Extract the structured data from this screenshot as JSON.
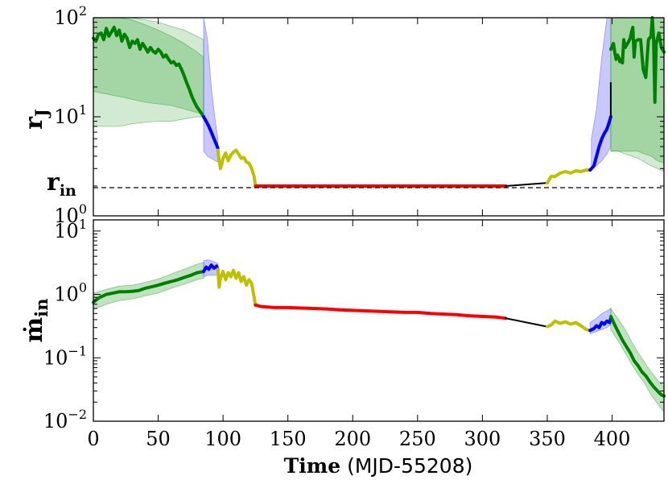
{
  "chart_data": [
    {
      "type": "line",
      "panel": "top",
      "ylabel": "r",
      "ylabel_sub": "J",
      "yscale": "log",
      "ylim": [
        1,
        100
      ],
      "xlim": [
        0,
        440
      ],
      "reference_line": {
        "label": "r",
        "label_sub": "in",
        "y": 2,
        "style": "dashed"
      },
      "yticks": [
        {
          "base": "10",
          "exp": "0",
          "value": 1
        },
        {
          "base": "10",
          "exp": "1",
          "value": 10
        },
        {
          "base": "10",
          "exp": "2",
          "value": 100
        }
      ],
      "colors": {
        "green": "#008000",
        "blue": "#0000ff",
        "yellow": "#bfbf00",
        "red": "#ff0000",
        "black": "#000000",
        "green_band": "#2e9e2e",
        "blue_band": "#4a4aff"
      },
      "bands": [
        {
          "color": "green",
          "opacity": 0.22,
          "x": [
            0,
            10,
            20,
            30,
            40,
            50,
            60,
            70,
            80,
            85
          ],
          "lower": [
            8,
            8,
            8,
            8.5,
            8.8,
            9,
            9,
            9.5,
            10,
            10
          ],
          "upper": [
            100,
            100,
            100,
            100,
            95,
            90,
            82,
            75,
            65,
            60
          ]
        },
        {
          "color": "green",
          "opacity": 0.28,
          "x": [
            0,
            10,
            20,
            30,
            40,
            50,
            60,
            70,
            80,
            85
          ],
          "lower": [
            18,
            17,
            16,
            15,
            14,
            13.5,
            13,
            12,
            11,
            10.5
          ],
          "upper": [
            100,
            100,
            100,
            95,
            85,
            75,
            65,
            55,
            45,
            40
          ]
        },
        {
          "color": "blue",
          "opacity": 0.3,
          "x": [
            85,
            88,
            91,
            94,
            96
          ],
          "lower": [
            4.5,
            4,
            3.8,
            3.6,
            3.5
          ],
          "upper": [
            100,
            60,
            20,
            9,
            6
          ]
        },
        {
          "color": "blue",
          "opacity": 0.3,
          "x": [
            384,
            388,
            392,
            396,
            399
          ],
          "lower": [
            3,
            3.2,
            3.6,
            4.2,
            5
          ],
          "upper": [
            6,
            12,
            40,
            100,
            100
          ]
        },
        {
          "color": "green",
          "opacity": 0.28,
          "x": [
            399,
            405,
            410,
            415,
            420,
            425,
            430,
            435,
            440
          ],
          "lower": [
            4.5,
            4.5,
            4.5,
            4.5,
            4.5,
            4.2,
            4,
            3.6,
            3.4
          ],
          "upper": [
            100,
            100,
            100,
            100,
            100,
            100,
            100,
            100,
            100
          ]
        },
        {
          "color": "green",
          "opacity": 0.22,
          "x": [
            399,
            405,
            410,
            415,
            420,
            425,
            430,
            435,
            440
          ],
          "lower": [
            4.5,
            4.5,
            4.2,
            4,
            3.8,
            3.5,
            3.2,
            3,
            2.8
          ],
          "upper": [
            100,
            100,
            100,
            100,
            100,
            100,
            100,
            100,
            100
          ]
        }
      ],
      "series": [
        {
          "color": "green",
          "x": [
            0,
            2,
            4,
            6,
            8,
            10,
            12,
            14,
            16,
            18,
            20,
            22,
            24,
            26,
            28,
            30,
            32,
            34,
            36,
            38,
            40,
            42,
            44,
            46,
            48,
            50,
            52,
            54,
            56,
            58,
            60,
            62,
            64,
            66,
            68,
            70,
            72,
            74,
            76,
            78,
            80,
            82,
            84,
            85
          ],
          "y": [
            62,
            58,
            68,
            70,
            60,
            78,
            65,
            72,
            80,
            66,
            75,
            58,
            68,
            62,
            50,
            58,
            55,
            60,
            48,
            55,
            50,
            45,
            50,
            46,
            44,
            48,
            45,
            40,
            42,
            38,
            35,
            36,
            33,
            34,
            30,
            26,
            22,
            19,
            16,
            14,
            12.5,
            11.5,
            10.5,
            10
          ]
        },
        {
          "color": "blue",
          "x": [
            85,
            87,
            89,
            91,
            93,
            95,
            96
          ],
          "y": [
            10,
            9,
            8,
            7,
            6,
            5.2,
            4.8
          ]
        },
        {
          "color": "yellow",
          "x": [
            96,
            97,
            98,
            99,
            100,
            102,
            104,
            106,
            108,
            110,
            112,
            114,
            116,
            118,
            120,
            122,
            124,
            125
          ],
          "y": [
            4.6,
            3.6,
            3,
            3.3,
            3.8,
            4.3,
            3.6,
            4.1,
            4.4,
            4.6,
            4.2,
            3.8,
            3.9,
            3.5,
            3.4,
            3,
            2.5,
            2
          ]
        },
        {
          "color": "red",
          "x": [
            125,
            318
          ],
          "y": [
            2,
            2
          ]
        },
        {
          "color": "black",
          "x": [
            318,
            350
          ],
          "y": [
            2,
            2.15
          ]
        },
        {
          "color": "yellow",
          "x": [
            350,
            353,
            356,
            360,
            364,
            368,
            372,
            376,
            380,
            383
          ],
          "y": [
            2.15,
            2.5,
            2.5,
            2.7,
            2.8,
            2.7,
            2.85,
            2.8,
            2.9,
            2.9
          ]
        },
        {
          "color": "blue",
          "x": [
            383,
            386,
            388,
            390,
            392,
            394,
            396,
            398,
            399
          ],
          "y": [
            2.9,
            3.2,
            4,
            5,
            6,
            6.8,
            7.5,
            9,
            10
          ]
        },
        {
          "color": "black",
          "x": [
            399,
            399
          ],
          "y": [
            10,
            22
          ]
        },
        {
          "color": "green",
          "x": [
            399,
            401,
            402,
            403,
            404,
            405,
            406,
            407,
            408,
            409,
            410,
            412,
            414,
            415,
            416,
            417,
            418,
            420,
            422,
            424,
            426,
            428,
            430,
            431,
            432,
            433,
            434,
            436,
            438,
            440
          ],
          "y": [
            48,
            55,
            45,
            38,
            42,
            40,
            36,
            38,
            35,
            60,
            50,
            55,
            62,
            72,
            80,
            40,
            58,
            60,
            60,
            30,
            25,
            60,
            65,
            100,
            60,
            14,
            55,
            70,
            50,
            45
          ]
        }
      ]
    },
    {
      "type": "line",
      "panel": "bottom",
      "ylabel": "ṁ",
      "ylabel_sub": "in",
      "xlabel": "Time",
      "xlabel_unit": "(MJD-55208)",
      "yscale": "log",
      "ylim": [
        0.01,
        15
      ],
      "xlim": [
        0,
        440
      ],
      "xticks": [
        0,
        50,
        100,
        150,
        200,
        250,
        300,
        350,
        400
      ],
      "yticks": [
        {
          "base": "10",
          "exp": "−2",
          "value": 0.01
        },
        {
          "base": "10",
          "exp": "−1",
          "value": 0.1
        },
        {
          "base": "10",
          "exp": "0",
          "value": 1
        },
        {
          "base": "10",
          "exp": "1",
          "value": 10
        }
      ],
      "bands": [
        {
          "color": "green",
          "opacity": 0.3,
          "x": [
            0,
            10,
            20,
            30,
            40,
            50,
            60,
            70,
            80,
            85
          ],
          "lower": [
            0.58,
            0.7,
            0.8,
            0.85,
            0.95,
            1.05,
            1.25,
            1.45,
            1.7,
            1.8
          ],
          "upper": [
            1.05,
            1.2,
            1.35,
            1.4,
            1.55,
            1.75,
            2.1,
            2.5,
            3,
            3.2
          ]
        },
        {
          "color": "blue",
          "opacity": 0.3,
          "x": [
            85,
            88,
            91,
            94,
            96
          ],
          "lower": [
            1.9,
            2,
            2,
            2,
            2.1
          ],
          "upper": [
            3.4,
            3.5,
            3.4,
            3.2,
            3.1
          ]
        },
        {
          "color": "blue",
          "opacity": 0.3,
          "x": [
            383,
            388,
            392,
            396,
            399
          ],
          "lower": [
            0.24,
            0.26,
            0.28,
            0.3,
            0.33
          ],
          "upper": [
            0.36,
            0.42,
            0.5,
            0.55,
            0.6
          ]
        },
        {
          "color": "green",
          "opacity": 0.3,
          "x": [
            399,
            405,
            410,
            415,
            420,
            425,
            430,
            435,
            440
          ],
          "lower": [
            0.28,
            0.18,
            0.12,
            0.08,
            0.055,
            0.04,
            0.026,
            0.019,
            0.014
          ],
          "upper": [
            0.6,
            0.4,
            0.28,
            0.18,
            0.12,
            0.085,
            0.06,
            0.045,
            0.035
          ]
        }
      ],
      "series": [
        {
          "color": "green",
          "x": [
            0,
            2,
            5,
            10,
            15,
            20,
            25,
            30,
            35,
            40,
            45,
            50,
            55,
            60,
            65,
            70,
            75,
            80,
            85
          ],
          "y": [
            0.75,
            0.82,
            0.9,
            1,
            1.05,
            1.1,
            1.1,
            1.12,
            1.15,
            1.25,
            1.32,
            1.4,
            1.5,
            1.6,
            1.7,
            1.85,
            2,
            2.2,
            2.3
          ]
        },
        {
          "color": "blue",
          "x": [
            85,
            87,
            89,
            91,
            93,
            95,
            96
          ],
          "y": [
            2.3,
            2.7,
            2.5,
            2.9,
            2.6,
            2.8,
            2.5
          ]
        },
        {
          "color": "yellow",
          "x": [
            96,
            97,
            98,
            100,
            102,
            104,
            106,
            108,
            110,
            112,
            114,
            116,
            118,
            120,
            122,
            124,
            125
          ],
          "y": [
            2.5,
            1.3,
            1.8,
            2.3,
            1.7,
            2.2,
            1.9,
            2.4,
            1.8,
            2.2,
            1.6,
            1.9,
            1.4,
            1.7,
            1.5,
            0.9,
            0.68
          ]
        },
        {
          "color": "red",
          "x": [
            125,
            130,
            140,
            150,
            160,
            170,
            180,
            190,
            200,
            210,
            220,
            230,
            240,
            250,
            260,
            270,
            280,
            290,
            300,
            310,
            318
          ],
          "y": [
            0.68,
            0.64,
            0.62,
            0.62,
            0.61,
            0.6,
            0.59,
            0.57,
            0.56,
            0.55,
            0.54,
            0.53,
            0.52,
            0.52,
            0.5,
            0.49,
            0.48,
            0.46,
            0.45,
            0.44,
            0.42
          ]
        },
        {
          "color": "black",
          "x": [
            318,
            350
          ],
          "y": [
            0.42,
            0.31
          ]
        },
        {
          "color": "yellow",
          "x": [
            350,
            353,
            356,
            360,
            364,
            368,
            372,
            376,
            380,
            383
          ],
          "y": [
            0.31,
            0.33,
            0.38,
            0.35,
            0.37,
            0.34,
            0.36,
            0.32,
            0.28,
            0.27
          ]
        },
        {
          "color": "blue",
          "x": [
            383,
            386,
            388,
            390,
            392,
            394,
            396,
            398,
            399
          ],
          "y": [
            0.27,
            0.29,
            0.32,
            0.3,
            0.36,
            0.34,
            0.38,
            0.36,
            0.42
          ]
        },
        {
          "color": "green",
          "x": [
            399,
            402,
            405,
            408,
            411,
            414,
            417,
            420,
            423,
            426,
            429,
            432,
            435,
            438,
            440
          ],
          "y": [
            0.45,
            0.33,
            0.25,
            0.19,
            0.15,
            0.12,
            0.09,
            0.075,
            0.06,
            0.052,
            0.042,
            0.035,
            0.03,
            0.026,
            0.025
          ]
        }
      ]
    }
  ]
}
